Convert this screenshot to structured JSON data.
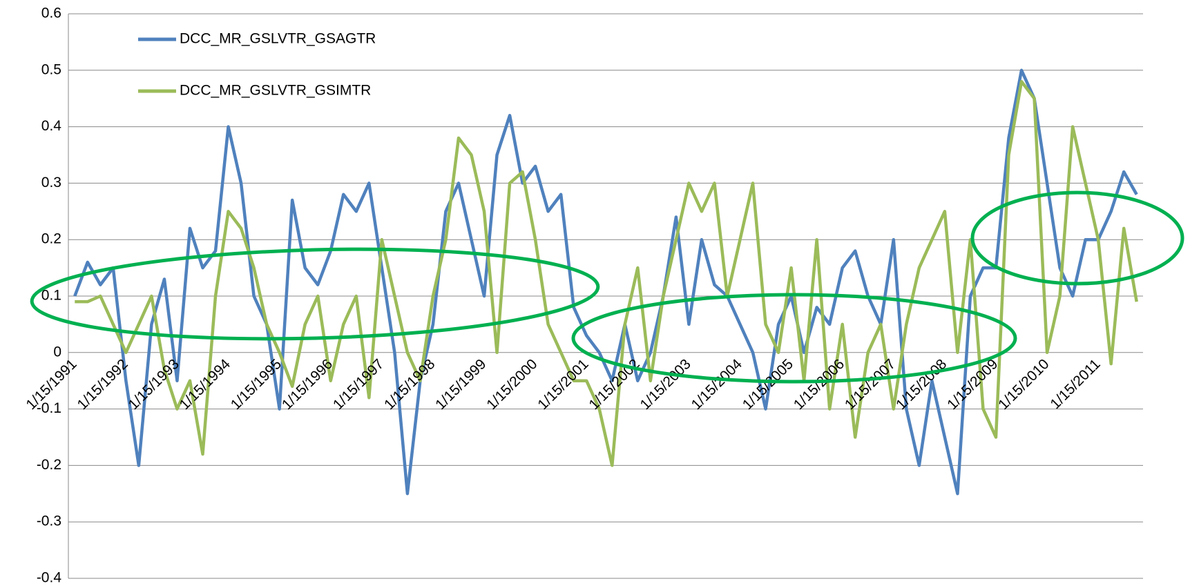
{
  "chart_data": {
    "type": "line",
    "categories": [
      "1/15/1991",
      null,
      null,
      null,
      "1/15/1992",
      null,
      null,
      null,
      "1/15/1993",
      null,
      null,
      null,
      "1/15/1994",
      null,
      null,
      null,
      "1/15/1995",
      null,
      null,
      null,
      "1/15/1996",
      null,
      null,
      null,
      "1/15/1997",
      null,
      null,
      null,
      "1/15/1998",
      null,
      null,
      null,
      "1/15/1999",
      null,
      null,
      null,
      "1/15/2000",
      null,
      null,
      null,
      "1/15/2001",
      null,
      null,
      null,
      "1/15/2002",
      null,
      null,
      null,
      "1/15/2003",
      null,
      null,
      null,
      "1/15/2004",
      null,
      null,
      null,
      "1/15/2005",
      null,
      null,
      null,
      "1/15/2006",
      null,
      null,
      null,
      "1/15/2007",
      null,
      null,
      null,
      "1/15/2008",
      null,
      null,
      null,
      "1/15/2009",
      null,
      null,
      null,
      "1/15/2010",
      null,
      null,
      null,
      "1/15/2011",
      null,
      null,
      null
    ],
    "series": [
      {
        "name": "DCC_MR_GSLVTR_GSAGTR",
        "color": "#4f81bd",
        "values": [
          0.1,
          0.16,
          0.12,
          0.15,
          -0.05,
          -0.2,
          0.05,
          0.13,
          -0.05,
          0.22,
          0.15,
          0.18,
          0.4,
          0.3,
          0.1,
          0.05,
          -0.1,
          0.27,
          0.15,
          0.12,
          0.18,
          0.28,
          0.25,
          0.3,
          0.15,
          0.0,
          -0.25,
          -0.05,
          0.05,
          0.25,
          0.3,
          0.2,
          0.1,
          0.35,
          0.42,
          0.3,
          0.33,
          0.25,
          0.28,
          0.08,
          0.03,
          0.0,
          -0.05,
          0.05,
          -0.05,
          0.0,
          0.1,
          0.24,
          0.05,
          0.2,
          0.12,
          0.1,
          0.05,
          0.0,
          -0.1,
          0.05,
          0.1,
          0.0,
          0.08,
          0.05,
          0.15,
          0.18,
          0.1,
          0.05,
          0.2,
          -0.1,
          -0.2,
          -0.05,
          -0.15,
          -0.25,
          0.1,
          0.15,
          0.15,
          0.38,
          0.5,
          0.45,
          0.3,
          0.15,
          0.1,
          0.2,
          0.2,
          0.25,
          0.32,
          0.28
        ]
      },
      {
        "name": "DCC_MR_GSLVTR_GSIMTR",
        "color": "#9bbb59",
        "values": [
          0.09,
          0.09,
          0.1,
          0.05,
          0.0,
          0.05,
          0.1,
          -0.03,
          -0.1,
          -0.05,
          -0.18,
          0.1,
          0.25,
          0.22,
          0.15,
          0.05,
          0.0,
          -0.06,
          0.05,
          0.1,
          -0.05,
          0.05,
          0.1,
          -0.08,
          0.2,
          0.1,
          0.0,
          -0.05,
          0.1,
          0.2,
          0.38,
          0.35,
          0.25,
          0.0,
          0.3,
          0.32,
          0.2,
          0.05,
          0.0,
          -0.05,
          -0.05,
          -0.1,
          -0.2,
          0.05,
          0.15,
          -0.05,
          0.1,
          0.2,
          0.3,
          0.25,
          0.3,
          0.1,
          0.2,
          0.3,
          0.05,
          0.0,
          0.15,
          -0.05,
          0.2,
          -0.1,
          0.05,
          -0.15,
          0.0,
          0.05,
          -0.1,
          0.05,
          0.15,
          0.2,
          0.25,
          0.0,
          0.2,
          -0.1,
          -0.15,
          0.35,
          0.48,
          0.45,
          0.0,
          0.1,
          0.4,
          0.3,
          0.2,
          -0.02,
          0.22,
          0.09
        ]
      }
    ],
    "ylim": [
      -0.4,
      0.6
    ],
    "yticks": [
      -0.4,
      -0.3,
      -0.2,
      -0.1,
      0,
      0.1,
      0.2,
      0.3,
      0.4,
      0.5,
      0.6
    ],
    "grid": true,
    "legend": "top-left"
  }
}
